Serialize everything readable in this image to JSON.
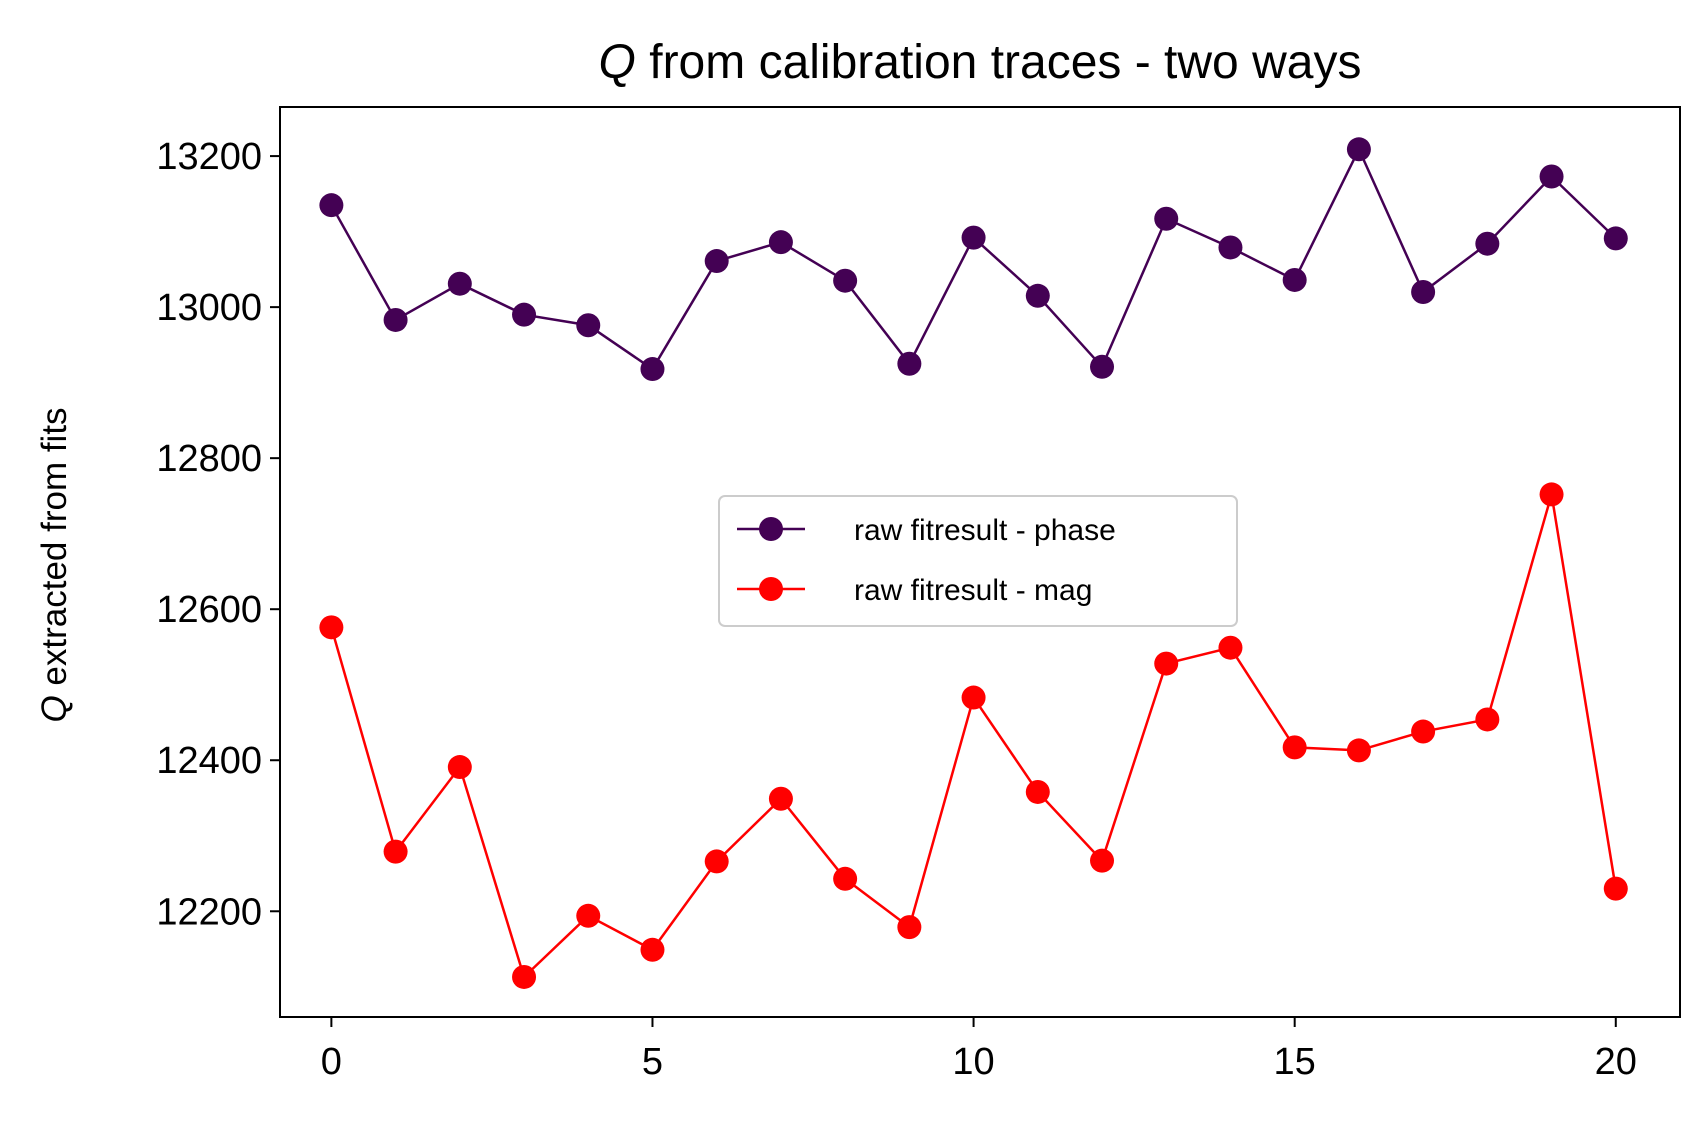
{
  "chart_data": {
    "type": "line",
    "title_italic": "Q",
    "title_rest": " from calibration traces - two ways",
    "xlabel": "",
    "ylabel_italic": "Q",
    "ylabel_rest": " extracted from fits",
    "xlim": [
      -0.8,
      21.0
    ],
    "ylim": [
      12060,
      13265
    ],
    "xticks": [
      0,
      5,
      10,
      15,
      20
    ],
    "yticks": [
      12200,
      12400,
      12600,
      12800,
      13000,
      13200
    ],
    "grid": false,
    "legend_position": "center-right",
    "x": [
      0,
      1,
      2,
      3,
      4,
      5,
      6,
      7,
      8,
      9,
      10,
      11,
      12,
      13,
      14,
      15,
      16,
      17,
      18,
      19,
      20
    ],
    "series": [
      {
        "name": "raw fitresult - phase",
        "color": "#440154",
        "values": [
          13135,
          12983,
          13031,
          12990,
          12976,
          12918,
          13061,
          13086,
          13035,
          12925,
          13092,
          13015,
          12921,
          13117,
          13079,
          13036,
          13209,
          13020,
          13084,
          13173,
          13091
        ]
      },
      {
        "name": "raw fitresult - mag",
        "color": "#ff0000",
        "values": [
          12576,
          12279,
          12391,
          12113,
          12194,
          12149,
          12266,
          12349,
          12243,
          12179,
          12483,
          12358,
          12267,
          12528,
          12549,
          12417,
          12413,
          12438,
          12454,
          12752,
          12230
        ]
      }
    ]
  }
}
